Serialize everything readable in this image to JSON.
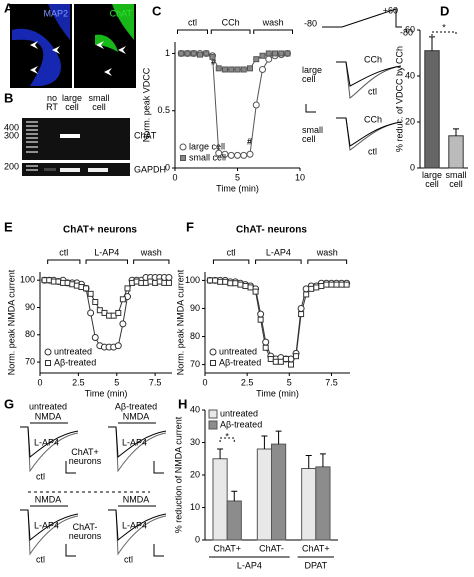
{
  "panel_a": {
    "panel": "A",
    "stains": [
      "MAP2",
      "ChAT"
    ]
  },
  "panel_b": {
    "panel": "B",
    "lanes": [
      "no RT",
      "large cell",
      "small cell"
    ],
    "sizes": [
      400,
      300,
      200
    ],
    "genes": [
      "ChAT",
      "GAPDH"
    ]
  },
  "panel_c_inset": {
    "voltages": [
      -80,
      {
        "value": 60,
        "label": "+60"
      },
      -80
    ],
    "cells": [
      {
        "name": "large cell",
        "traces": [
          "CCh",
          "ctl"
        ]
      },
      {
        "name": "small cell",
        "traces": [
          "CCh",
          "ctl"
        ]
      }
    ]
  },
  "panel_g": {
    "panel": "G",
    "columns": [
      "untreated",
      "Aβ-treated"
    ],
    "rows": [
      "ChAT+ neurons",
      "ChAT- neurons"
    ],
    "traces": [
      {
        "stim": "NMDA",
        "drug": "L-AP4",
        "ctl": "ctl"
      },
      {
        "stim": "NMDA",
        "drug": "L-AP4"
      },
      {
        "stim": "NMDA",
        "drug": "L-AP4",
        "ctl": "ctl"
      },
      {
        "stim": "NMDA",
        "drug": "L-AP4",
        "ctl": "ctl"
      }
    ]
  },
  "chart_data": [
    {
      "type": "scatter",
      "panel": "C",
      "x_label": "Time (min)",
      "y_label": "Norm. peak VDCC",
      "xlim": [
        0,
        10
      ],
      "xticks": [
        0,
        5,
        10
      ],
      "ylim": [
        0,
        1.1
      ],
      "yticks": [
        0,
        0.5,
        1
      ],
      "phases": [
        {
          "label": "ctl",
          "from": 0.2,
          "to": 2.6
        },
        {
          "label": "CCh",
          "from": 2.9,
          "to": 6.0
        },
        {
          "label": "wash",
          "from": 6.3,
          "to": 9.4
        }
      ],
      "notes": [
        "#",
        "#"
      ],
      "legend": "lower left",
      "x": [
        0.5,
        1,
        1.5,
        2,
        2.5,
        3,
        3.5,
        4,
        4.5,
        5,
        5.5,
        6,
        6.5,
        7,
        7.5,
        8,
        8.5,
        9
      ],
      "series": [
        {
          "name": "large cell",
          "marker": "circle",
          "color": "#555555",
          "fill": "#ffffff",
          "values": [
            1,
            1,
            1,
            1,
            1,
            0.98,
            0.13,
            0.12,
            0.11,
            0.11,
            0.11,
            0.12,
            0.55,
            0.86,
            0.95,
            0.98,
            0.99,
            1
          ]
        },
        {
          "name": "small cell",
          "marker": "square",
          "color": "#555555",
          "fill": "#888888",
          "values": [
            1,
            1,
            1,
            0.99,
            1,
            0.97,
            0.87,
            0.86,
            0.86,
            0.86,
            0.86,
            0.87,
            0.95,
            0.98,
            1,
            1,
            1,
            1
          ]
        }
      ]
    },
    {
      "type": "bar",
      "panel": "D",
      "y_label": "% reduc. of VDCC by CCh",
      "categories": [
        "large cell",
        "small cell"
      ],
      "values": [
        51,
        14
      ],
      "errors": [
        6,
        3
      ],
      "colors": [
        "#666666",
        "#bbbbbb"
      ],
      "ylim": [
        0,
        60
      ],
      "yticks": [
        0,
        20,
        40,
        60
      ],
      "significance": "*"
    },
    {
      "type": "scatter",
      "panel": "E",
      "title": "ChAT+ neurons",
      "x_label": "Time (min)",
      "y_label": "Norm. peak NMDA current",
      "xlim": [
        0,
        8.6
      ],
      "xticks": [
        0,
        2.5,
        5,
        7.5
      ],
      "ylim": [
        66,
        103
      ],
      "yticks": [
        70,
        80,
        90,
        100
      ],
      "phases": [
        {
          "label": "ctl",
          "from": 0.5,
          "to": 2.6
        },
        {
          "label": "L-AP4",
          "from": 3.0,
          "to": 5.7
        },
        {
          "label": "wash",
          "from": 6.1,
          "to": 8.4
        }
      ],
      "legend": "lower left",
      "x": [
        0.3,
        0.6,
        0.9,
        1.2,
        1.5,
        1.8,
        2.1,
        2.4,
        2.7,
        3.0,
        3.3,
        3.6,
        3.9,
        4.2,
        4.5,
        4.8,
        5.1,
        5.4,
        5.7,
        6.0,
        6.3,
        6.6,
        6.9,
        7.2,
        7.5,
        7.8,
        8.1,
        8.4
      ],
      "series": [
        {
          "name": "untreated",
          "marker": "circle",
          "color": "#333333",
          "fill": "#ffffff",
          "values": [
            100,
            100,
            100,
            99.5,
            100,
            99,
            99,
            99,
            98.5,
            97,
            88,
            79,
            76,
            75.5,
            75.5,
            75.5,
            76,
            84,
            94,
            100,
            100,
            100,
            101,
            101,
            101,
            101,
            101,
            101
          ]
        },
        {
          "name": "Aβ-treated",
          "marker": "square",
          "color": "#333333",
          "fill": "#ffffff",
          "values": [
            100,
            100,
            99.5,
            99.5,
            99,
            99,
            98.5,
            98,
            97.5,
            97,
            95,
            92,
            89,
            88,
            87,
            87,
            88,
            93,
            97,
            99,
            99.5,
            99,
            99,
            99.5,
            99,
            99.5,
            99,
            99
          ]
        }
      ]
    },
    {
      "type": "scatter",
      "panel": "F",
      "title": "ChAT- neurons",
      "x_label": "Time (min)",
      "y_label": "Norm. peak NMDA current",
      "xlim": [
        0,
        8.6
      ],
      "xticks": [
        0,
        2.5,
        5,
        7.5
      ],
      "ylim": [
        67,
        103
      ],
      "yticks": [
        70,
        80,
        90,
        100
      ],
      "phases": [
        {
          "label": "ctl",
          "from": 0.5,
          "to": 2.6
        },
        {
          "label": "L-AP4",
          "from": 3.0,
          "to": 5.7
        },
        {
          "label": "wash",
          "from": 6.1,
          "to": 8.4
        }
      ],
      "legend": "lower left",
      "x": [
        0.3,
        0.6,
        0.9,
        1.2,
        1.5,
        1.8,
        2.1,
        2.4,
        2.7,
        3.0,
        3.3,
        3.6,
        3.9,
        4.2,
        4.5,
        4.8,
        5.1,
        5.4,
        5.7,
        6.0,
        6.3,
        6.6,
        6.9,
        7.2,
        7.5,
        7.8,
        8.1,
        8.4
      ],
      "series": [
        {
          "name": "untreated",
          "marker": "circle",
          "color": "#333333",
          "fill": "#ffffff",
          "values": [
            100,
            100,
            100,
            100,
            99.5,
            99.5,
            99,
            98.5,
            98,
            97,
            88,
            78,
            73,
            72,
            72.5,
            72,
            72,
            74,
            90,
            97,
            98,
            98,
            99,
            99,
            99,
            99,
            99,
            99
          ]
        },
        {
          "name": "Aβ-treated",
          "marker": "square",
          "color": "#333333",
          "fill": "#ffffff",
          "values": [
            100,
            100,
            99.5,
            99.5,
            99,
            99,
            98.5,
            98,
            97.5,
            96,
            86,
            76,
            72,
            71,
            71,
            72,
            70,
            73,
            88,
            95,
            97,
            97.5,
            98,
            98.5,
            98.5,
            98.5,
            98.5,
            98.5
          ]
        }
      ]
    },
    {
      "type": "grouped_bar",
      "panel": "H",
      "y_label": "% reduction of NMDA current",
      "groups": [
        {
          "label": "L-AP4",
          "categories": [
            "ChAT+",
            "ChAT-"
          ]
        },
        {
          "label": "DPAT",
          "categories": [
            "ChAT+"
          ]
        }
      ],
      "series": [
        {
          "name": "untreated",
          "color": "#e8e8e8",
          "values": [
            25,
            28,
            22
          ],
          "errors": [
            3,
            4,
            4
          ]
        },
        {
          "name": "Aβ-treated",
          "color": "#8c8c8c",
          "values": [
            12,
            29.5,
            22.5
          ],
          "errors": [
            3,
            4,
            4
          ]
        }
      ],
      "ylim": [
        0,
        40
      ],
      "yticks": [
        0,
        10,
        20,
        30,
        40
      ],
      "significance": "*",
      "legend": "upper left"
    }
  ]
}
